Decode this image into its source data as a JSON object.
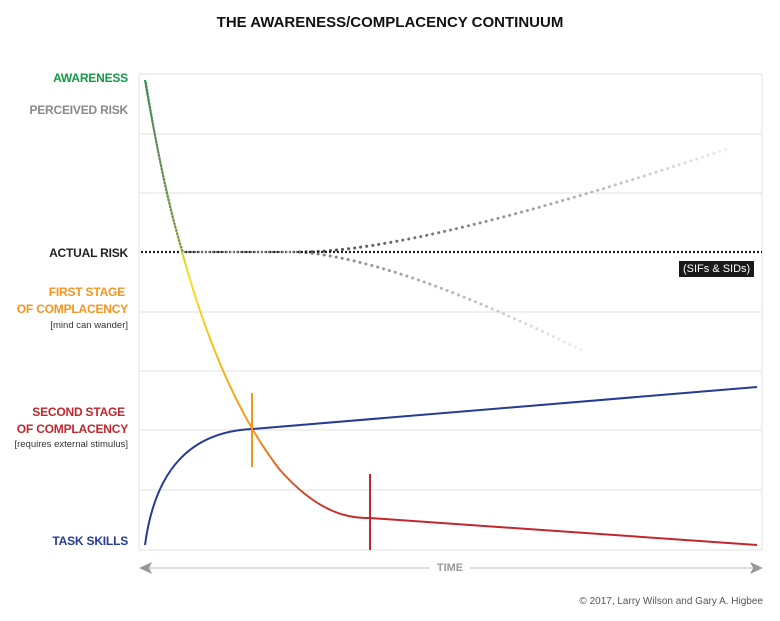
{
  "title": "THE AWARENESS/COMPLACENCY CONTINUUM",
  "labels": {
    "awareness": "AWARENESS",
    "perceived_risk": "PERCEIVED RISK",
    "actual_risk": "ACTUAL RISK",
    "first_stage_1": "FIRST STAGE",
    "first_stage_2": "OF COMPLACENCY",
    "first_stage_note": "[mind can wander]",
    "second_stage_1": "SECOND STAGE",
    "second_stage_2": "OF COMPLACENCY",
    "second_stage_note": "[requires external stimulus]",
    "task_skills": "TASK SKILLS"
  },
  "annotation": "(SIFs & SIDs)",
  "x_axis_label": "TIME",
  "copyright": "© 2017, Larry Wilson and Gary A. Higbee",
  "colors": {
    "awareness": "#129a48",
    "perceived_risk": "#888888",
    "actual_risk": "#222222",
    "first_stage": "#f7941d",
    "second_stage": "#c1272d",
    "task_skills": "#253b96",
    "yellow": "#f5e21b"
  }
}
